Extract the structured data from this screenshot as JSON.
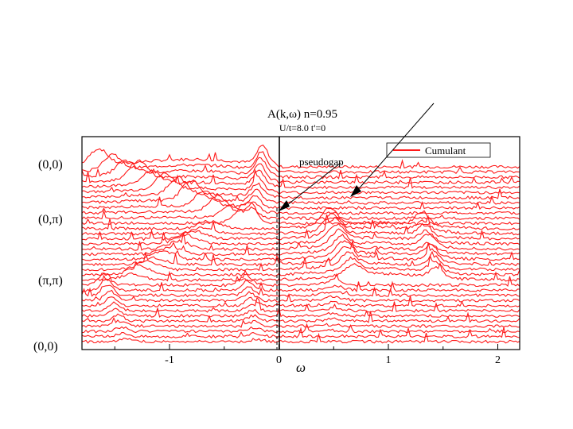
{
  "chart_data": {
    "type": "line",
    "title": "A(k,ω) n=0.95",
    "subtitle": "U/t=8.0 t'=0",
    "xlabel": "ω",
    "ylabel": "",
    "xlim": [
      -1.8,
      2.2
    ],
    "x_ticks": [
      {
        "value": -1,
        "label": "-1"
      },
      {
        "value": 0,
        "label": "0"
      },
      {
        "value": 1,
        "label": "1"
      },
      {
        "value": 2,
        "label": "2"
      }
    ],
    "k_path_labels": [
      "(0,0)",
      "(0,π)",
      "(π,π)",
      "(0,0)"
    ],
    "legend": {
      "label": "Cumulant",
      "position": "top-right"
    },
    "annotations": [
      {
        "text": "pseudogap"
      }
    ],
    "series_count": 35,
    "colors": {
      "curve": "#ff1a1a",
      "axis": "#000000",
      "annotation": "#000000"
    }
  }
}
